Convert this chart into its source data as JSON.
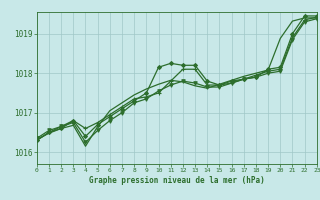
{
  "background_color": "#c8e8e8",
  "grid_color": "#a0c8c8",
  "line_color": "#2d6e2d",
  "xlabel": "Graphe pression niveau de la mer (hPa)",
  "xlim": [
    0,
    23
  ],
  "ylim": [
    1015.7,
    1019.55
  ],
  "yticks": [
    1016,
    1017,
    1018,
    1019
  ],
  "xticks": [
    0,
    1,
    2,
    3,
    4,
    5,
    6,
    7,
    8,
    9,
    10,
    11,
    12,
    13,
    14,
    15,
    16,
    17,
    18,
    19,
    20,
    21,
    22,
    23
  ],
  "series": [
    {
      "x": [
        0,
        1,
        2,
        3,
        4,
        5,
        6,
        7,
        8,
        9,
        10,
        11,
        12,
        13,
        14,
        15,
        16,
        17,
        18,
        19,
        20,
        21,
        22,
        23
      ],
      "y": [
        1016.3,
        1016.5,
        1016.6,
        1016.8,
        1016.4,
        1016.7,
        1016.9,
        1017.1,
        1017.3,
        1017.5,
        1018.15,
        1018.25,
        1018.2,
        1018.2,
        1017.8,
        1017.7,
        1017.8,
        1017.85,
        1017.9,
        1018.1,
        1018.15,
        1019.0,
        1019.45,
        1019.45
      ],
      "marker": "D",
      "markersize": 2.0,
      "linewidth": 0.9
    },
    {
      "x": [
        0,
        1,
        2,
        3,
        4,
        5,
        6,
        7,
        8,
        9,
        10,
        11,
        12,
        13,
        14,
        15,
        16,
        17,
        18,
        19,
        20,
        21,
        22,
        23
      ],
      "y": [
        1016.3,
        1016.5,
        1016.65,
        1016.8,
        1016.6,
        1016.75,
        1016.95,
        1017.15,
        1017.35,
        1017.4,
        1017.5,
        1017.8,
        1018.1,
        1018.1,
        1017.7,
        1017.7,
        1017.75,
        1017.85,
        1017.95,
        1018.05,
        1018.1,
        1018.9,
        1019.35,
        1019.42
      ],
      "marker": "+",
      "markersize": 3.5,
      "linewidth": 0.9
    },
    {
      "x": [
        0,
        1,
        2,
        3,
        4,
        5,
        6,
        7,
        8,
        9,
        10,
        11,
        12,
        13,
        14,
        15,
        16,
        17,
        18,
        19,
        20,
        21,
        22,
        23
      ],
      "y": [
        1016.35,
        1016.55,
        1016.65,
        1016.75,
        1016.25,
        1016.55,
        1016.8,
        1017.0,
        1017.25,
        1017.35,
        1017.55,
        1017.7,
        1017.8,
        1017.75,
        1017.65,
        1017.65,
        1017.75,
        1017.85,
        1017.9,
        1018.0,
        1018.05,
        1018.85,
        1019.3,
        1019.38
      ],
      "marker": "v",
      "markersize": 2.5,
      "linewidth": 0.9
    },
    {
      "x": [
        0,
        1,
        2,
        3,
        4,
        5,
        6,
        7,
        8,
        9,
        10,
        11,
        12,
        13,
        14,
        15,
        16,
        17,
        18,
        19,
        20,
        21,
        22,
        23
      ],
      "y": [
        1016.32,
        1016.48,
        1016.6,
        1016.68,
        1016.15,
        1016.65,
        1017.05,
        1017.25,
        1017.45,
        1017.6,
        1017.72,
        1017.82,
        1017.78,
        1017.68,
        1017.62,
        1017.72,
        1017.82,
        1017.92,
        1018.0,
        1018.08,
        1018.88,
        1019.32,
        1019.4,
        1019.4
      ],
      "marker": null,
      "markersize": 0,
      "linewidth": 0.9
    }
  ]
}
